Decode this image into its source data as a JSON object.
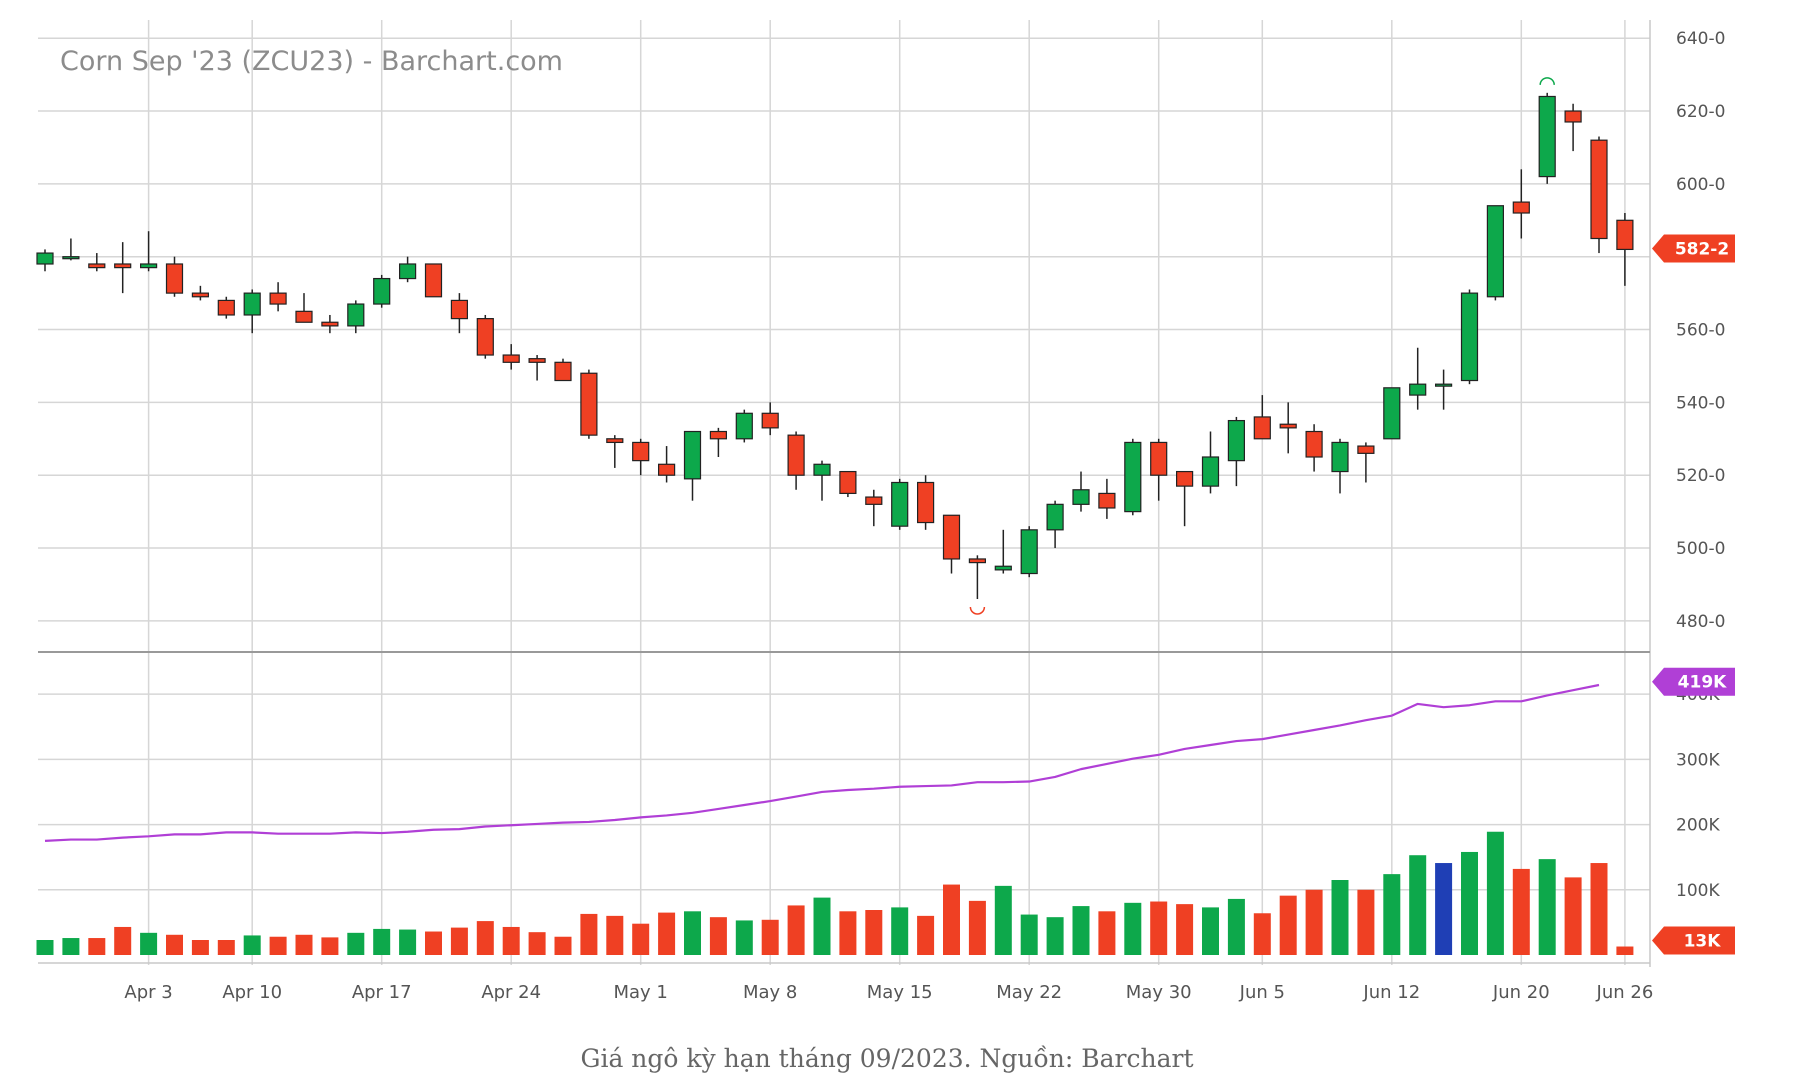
{
  "chart_data": {
    "type": "candlestick",
    "title": "Corn Sep '23 (ZCU23) - Barchart.com",
    "caption": "Giá ngô kỳ hạn tháng 09/2023. Nguồn: Barchart",
    "colors": {
      "up": "#0da84b",
      "down": "#ef4023",
      "highlight": "#1f3fb5",
      "open_interest": "#b03fd6",
      "grid": "#d6d6d6",
      "badge_price": "#ef4023",
      "badge_oi": "#b03fd6",
      "badge_volume": "#ef4023"
    },
    "x_ticks": [
      {
        "index": 4,
        "label": "Apr 3"
      },
      {
        "index": 8,
        "label": "Apr 10"
      },
      {
        "index": 13,
        "label": "Apr 17"
      },
      {
        "index": 18,
        "label": "Apr 24"
      },
      {
        "index": 23,
        "label": "May 1"
      },
      {
        "index": 28,
        "label": "May 8"
      },
      {
        "index": 33,
        "label": "May 15"
      },
      {
        "index": 38,
        "label": "May 22"
      },
      {
        "index": 43,
        "label": "May 30"
      },
      {
        "index": 47,
        "label": "Jun 5"
      },
      {
        "index": 52,
        "label": "Jun 12"
      },
      {
        "index": 57,
        "label": "Jun 20"
      },
      {
        "index": 61,
        "label": "Jun 26"
      }
    ],
    "price_axis": {
      "ylim": [
        472,
        645
      ],
      "ticks": [
        640,
        620,
        600,
        580,
        560,
        540,
        520,
        500,
        480
      ],
      "tick_labels": [
        "640-0",
        "620-0",
        "600-0",
        "",
        "560-0",
        "540-0",
        "520-0",
        "500-0",
        "480-0"
      ],
      "last_label": "582-2",
      "last_value": 582.25
    },
    "lower_axis": {
      "ylim": [
        0,
        460
      ],
      "ticks": [
        400,
        300,
        200,
        100
      ],
      "tick_labels": [
        "400K",
        "300K",
        "200K",
        "100K"
      ],
      "oi_label": "419K",
      "oi_value": 419,
      "volume_label": "13K",
      "volume_value": 13
    },
    "candles": [
      [
        578,
        582,
        576,
        581
      ],
      [
        580,
        585,
        579,
        580
      ],
      [
        578,
        581,
        576,
        577
      ],
      [
        578,
        584,
        570,
        577
      ],
      [
        577,
        587,
        576,
        578
      ],
      [
        578,
        580,
        569,
        570
      ],
      [
        570,
        572,
        568,
        569
      ],
      [
        568,
        569,
        563,
        564
      ],
      [
        564,
        571,
        559,
        570
      ],
      [
        570,
        573,
        565,
        567
      ],
      [
        565,
        570,
        562,
        562
      ],
      [
        562,
        564,
        559,
        561
      ],
      [
        561,
        568,
        559,
        567
      ],
      [
        567,
        575,
        566,
        574
      ],
      [
        574,
        580,
        573,
        578
      ],
      [
        578,
        578,
        569,
        569
      ],
      [
        568,
        570,
        559,
        563
      ],
      [
        563,
        564,
        552,
        553
      ],
      [
        553,
        556,
        549,
        551
      ],
      [
        552,
        553,
        546,
        551
      ],
      [
        551,
        552,
        546,
        546
      ],
      [
        548,
        549,
        530,
        531
      ],
      [
        530,
        531,
        522,
        529
      ],
      [
        529,
        530,
        520,
        524
      ],
      [
        523,
        528,
        518,
        520
      ],
      [
        519,
        532,
        513,
        532
      ],
      [
        532,
        533,
        525,
        530
      ],
      [
        530,
        538,
        529,
        537
      ],
      [
        537,
        540,
        531,
        533
      ],
      [
        531,
        532,
        516,
        520
      ],
      [
        520,
        524,
        513,
        523
      ],
      [
        521,
        521,
        514,
        515
      ],
      [
        514,
        516,
        506,
        512
      ],
      [
        506,
        519,
        505,
        518
      ],
      [
        518,
        520,
        505,
        507
      ],
      [
        509,
        509,
        493,
        497
      ],
      [
        497,
        498,
        486,
        496
      ],
      [
        494,
        505,
        493,
        495
      ],
      [
        493,
        506,
        492,
        505
      ],
      [
        505,
        513,
        500,
        512
      ],
      [
        512,
        521,
        510,
        516
      ],
      [
        515,
        519,
        508,
        511
      ],
      [
        510,
        530,
        509,
        529
      ],
      [
        529,
        530,
        513,
        520
      ],
      [
        521,
        521,
        506,
        517
      ],
      [
        517,
        532,
        515,
        525
      ],
      [
        524,
        536,
        517,
        535
      ],
      [
        536,
        542,
        530,
        530
      ],
      [
        534,
        540,
        526,
        533
      ],
      [
        532,
        534,
        521,
        525
      ],
      [
        521,
        530,
        515,
        529
      ],
      [
        528,
        529,
        518,
        526
      ],
      [
        530,
        543,
        530,
        544
      ],
      [
        542,
        555,
        538,
        545
      ],
      [
        545,
        549,
        538,
        545
      ],
      [
        546,
        571,
        545,
        570
      ],
      [
        569,
        594,
        568,
        594
      ],
      [
        595,
        604,
        585,
        592
      ],
      [
        602,
        625,
        600,
        624
      ],
      [
        620,
        622,
        609,
        617
      ],
      [
        612,
        613,
        581,
        585
      ],
      [
        590,
        592,
        572,
        582
      ]
    ],
    "volume": [
      23,
      26,
      26,
      43,
      34,
      31,
      23,
      23,
      30,
      28,
      31,
      27,
      34,
      40,
      39,
      36,
      42,
      52,
      43,
      35,
      28,
      63,
      60,
      48,
      65,
      67,
      58,
      53,
      54,
      76,
      88,
      67,
      69,
      73,
      60,
      108,
      83,
      106,
      62,
      58,
      75,
      67,
      80,
      82,
      78,
      73,
      86,
      64,
      91,
      100,
      115,
      100,
      124,
      153,
      141,
      158,
      189,
      132,
      147,
      119,
      141,
      13
    ],
    "open_interest": [
      175,
      177,
      177,
      180,
      182,
      185,
      185,
      188,
      188,
      186,
      186,
      186,
      188,
      187,
      189,
      192,
      193,
      197,
      199,
      201,
      203,
      204,
      207,
      211,
      214,
      218,
      224,
      230,
      236,
      243,
      250,
      253,
      255,
      258,
      259,
      260,
      265,
      265,
      266,
      273,
      285,
      293,
      301,
      307,
      316,
      322,
      328,
      331,
      338,
      345,
      352,
      360,
      367,
      385,
      380,
      383,
      389,
      389,
      398,
      406,
      414,
      null
    ],
    "markers": {
      "high_index": 58,
      "low_index": 36
    }
  }
}
